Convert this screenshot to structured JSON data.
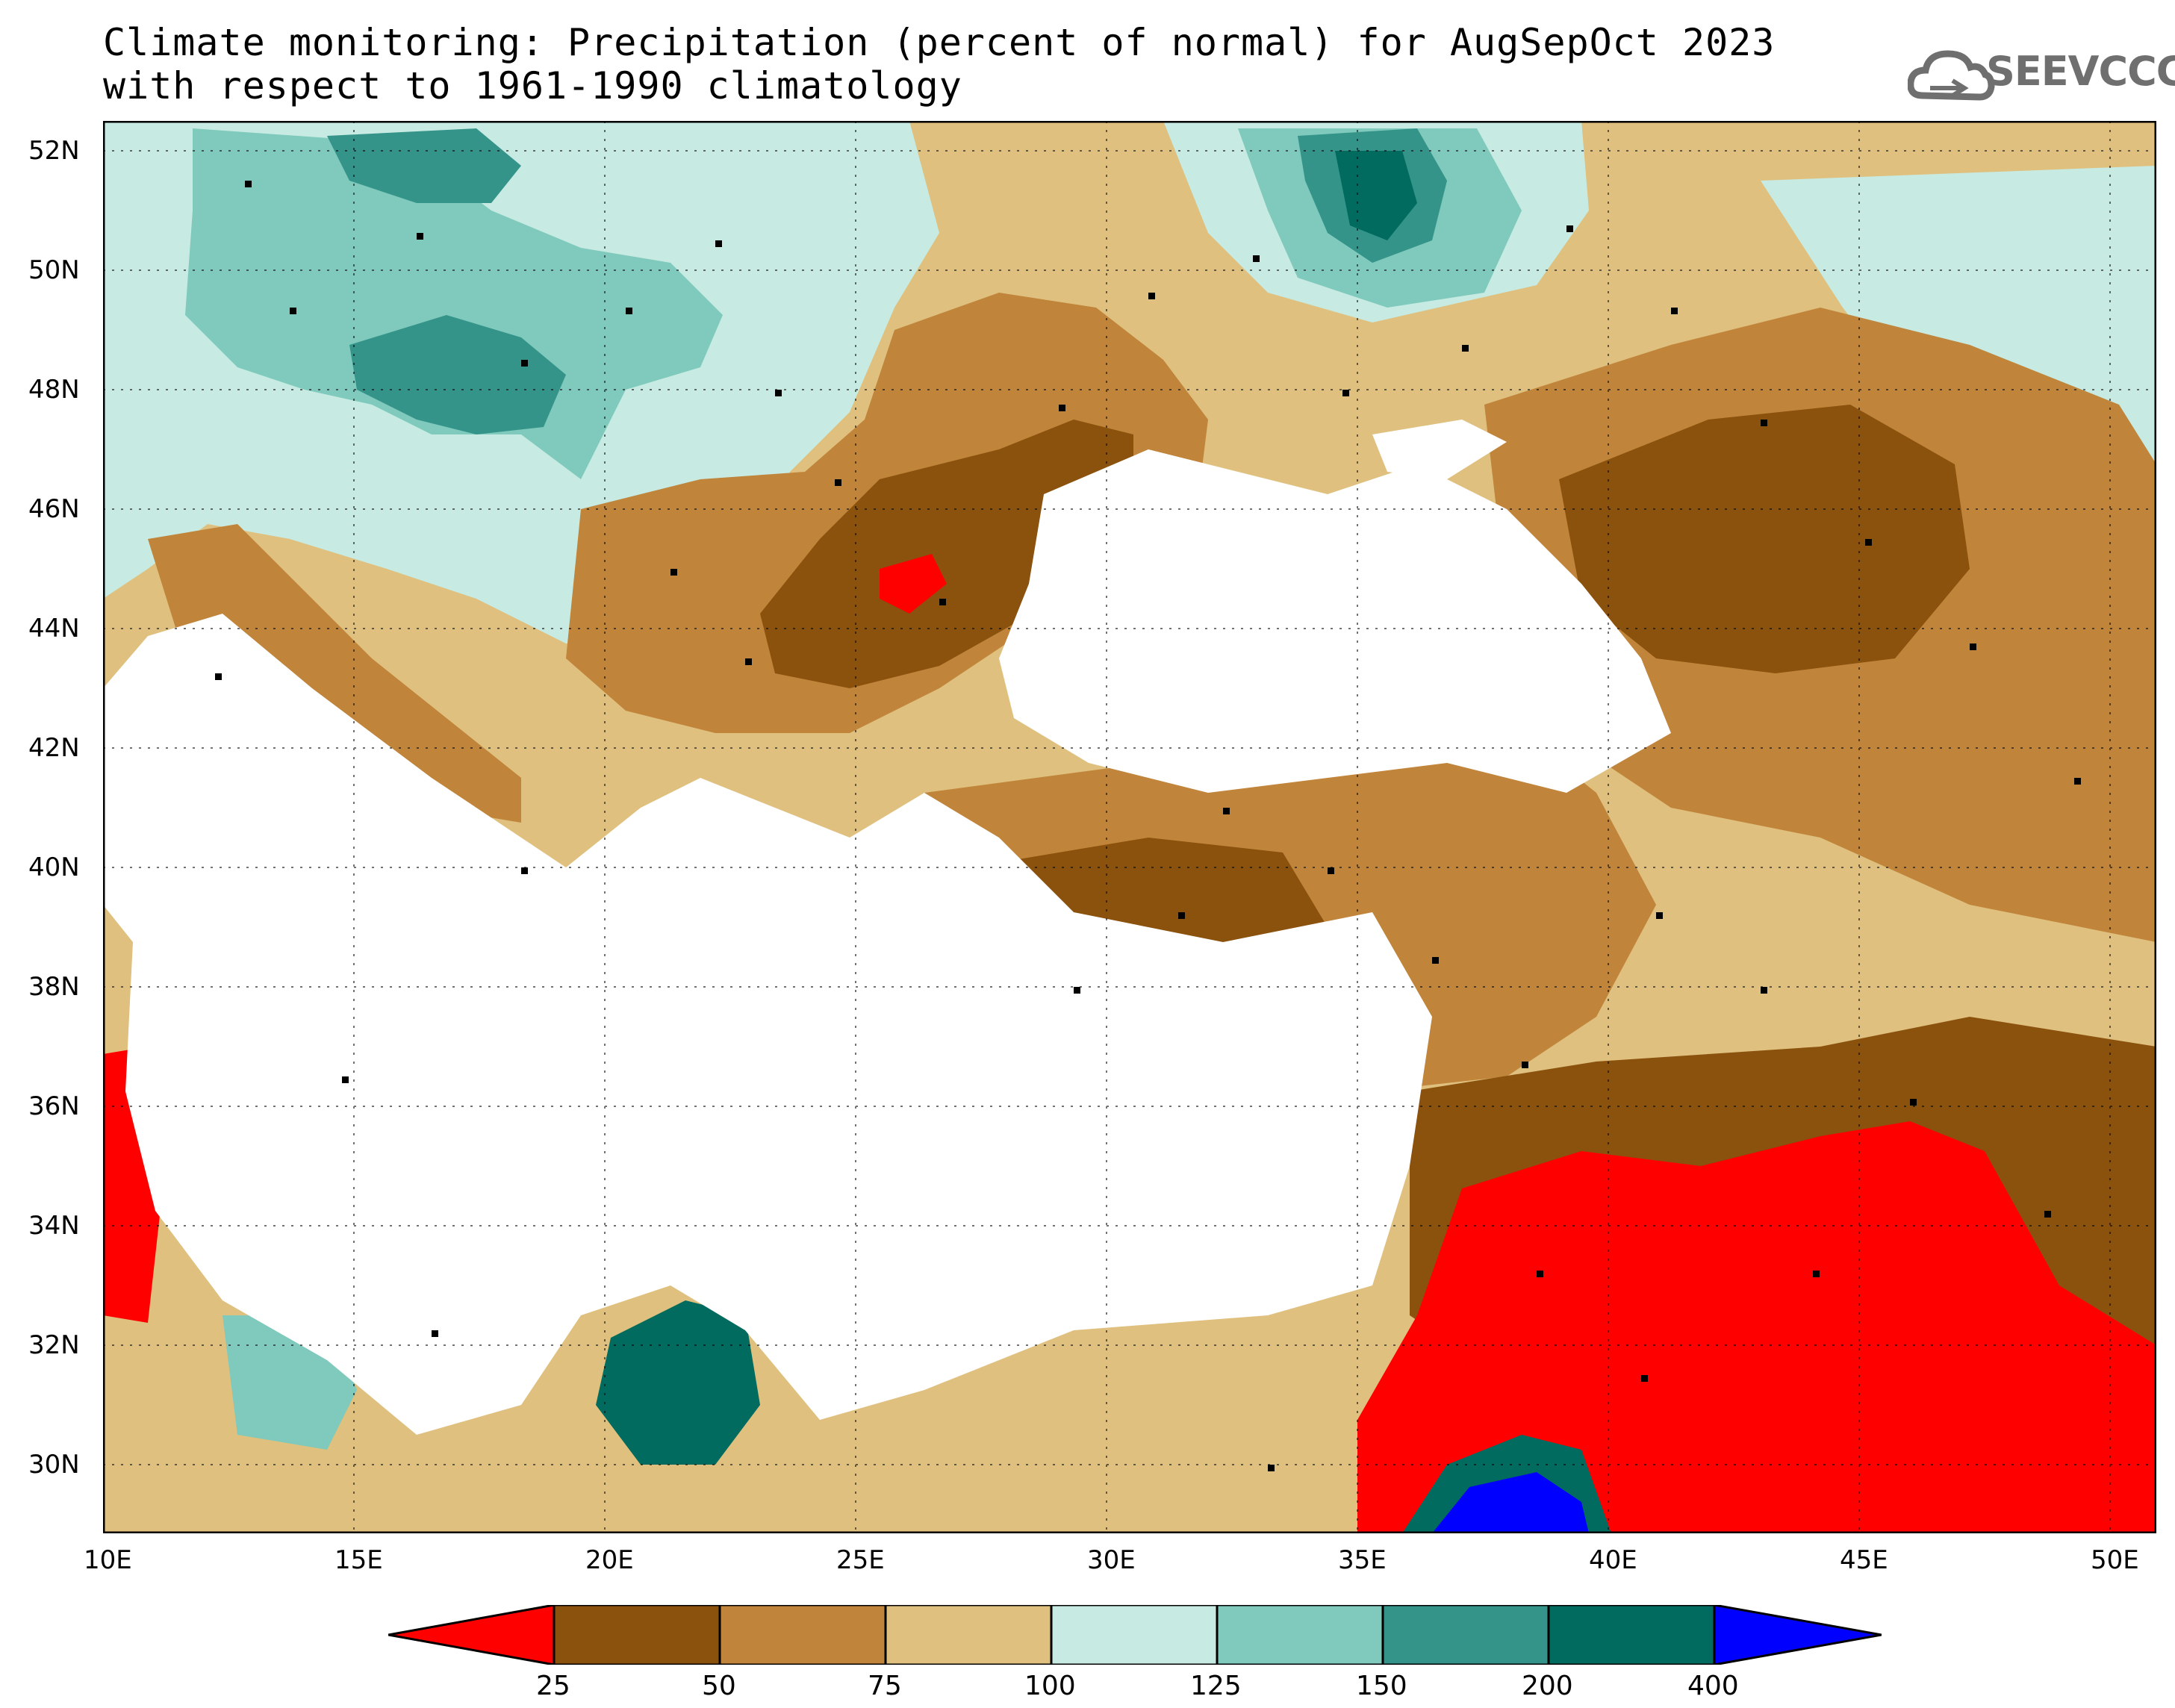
{
  "title": {
    "line1": "Climate monitoring: Precipitation (percent of normal) for AugSepOct 2023",
    "line2": "with respect to 1961-1990 climatology"
  },
  "logo": {
    "text": "SEEVCCC",
    "icon": "cloud-icon"
  },
  "axes": {
    "lat_labels": [
      "52N",
      "50N",
      "48N",
      "46N",
      "44N",
      "42N",
      "40N",
      "38N",
      "36N",
      "34N",
      "32N",
      "30N"
    ],
    "lon_labels": [
      "10E",
      "15E",
      "20E",
      "25E",
      "30E",
      "35E",
      "40E",
      "45E",
      "50E"
    ]
  },
  "colorbar": {
    "bins": [
      {
        "color": "#ff0000"
      },
      {
        "color": "#8b520e"
      },
      {
        "color": "#c0843a"
      },
      {
        "color": "#dfc07e"
      },
      {
        "color": "#c7ebe2"
      },
      {
        "color": "#7fcabc"
      },
      {
        "color": "#35948a"
      },
      {
        "color": "#006b5e"
      },
      {
        "color": "#0000ff"
      }
    ],
    "labels": [
      "25",
      "50",
      "75",
      "100",
      "125",
      "150",
      "200",
      "400"
    ]
  },
  "map": {
    "sea_color": "#ffffff"
  }
}
